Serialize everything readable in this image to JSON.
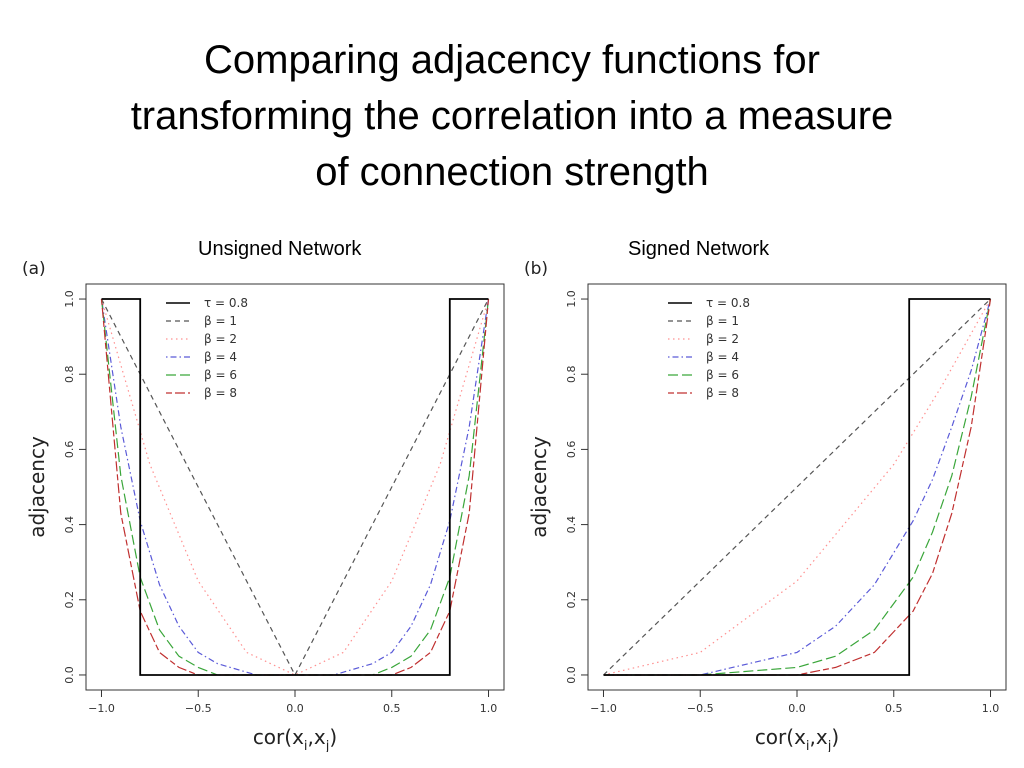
{
  "slide": {
    "title_lines": [
      "Comparing adjacency functions for",
      "transforming the correlation into a measure",
      "of connection strength"
    ],
    "panel_titles": [
      "Unsigned Network",
      "Signed Network"
    ]
  },
  "chart_data": [
    {
      "type": "line",
      "panel_label": "(a)",
      "title": "Unsigned Network",
      "xlabel": "cor(x_i,x_j)",
      "ylabel": "adjacency",
      "xlim": [
        -1.0,
        1.0
      ],
      "ylim": [
        0.0,
        1.0
      ],
      "xticks": [
        -1.0,
        -0.5,
        0.0,
        0.5,
        1.0
      ],
      "xtick_labels": [
        "−1.0",
        "−0.5",
        "0.0",
        "0.5",
        "1.0"
      ],
      "yticks": [
        0.0,
        0.2,
        0.4,
        0.6,
        0.8,
        1.0
      ],
      "ytick_labels": [
        "0.0",
        "0.2",
        "0.4",
        "0.6",
        "0.8",
        "1.0"
      ],
      "grid": false,
      "legend_position": "top-left",
      "series": [
        {
          "name": "τ = 0.8",
          "color": "#000000",
          "dash": "solid",
          "x": [
            -1.0,
            -0.8,
            -0.8,
            0.8,
            0.8,
            1.0
          ],
          "y": [
            1,
            1,
            0,
            0,
            1,
            1
          ]
        },
        {
          "name": "β = 1",
          "color": "#555555",
          "dash": "dashed",
          "x": [
            -1.0,
            -0.5,
            0.0,
            0.5,
            1.0
          ],
          "y": [
            1.0,
            0.5,
            0.0,
            0.5,
            1.0
          ]
        },
        {
          "name": "β = 2",
          "color": "#ff9090",
          "dash": "dotted",
          "x": [
            -1.0,
            -0.75,
            -0.5,
            -0.25,
            0.0,
            0.25,
            0.5,
            0.75,
            1.0
          ],
          "y": [
            1.0,
            0.56,
            0.25,
            0.06,
            0.0,
            0.06,
            0.25,
            0.56,
            1.0
          ]
        },
        {
          "name": "β = 4",
          "color": "#5a5ad8",
          "dash": "dashdot",
          "x": [
            -1.0,
            -0.9,
            -0.8,
            -0.7,
            -0.6,
            -0.5,
            -0.4,
            -0.2,
            0.0,
            0.2,
            0.4,
            0.5,
            0.6,
            0.7,
            0.8,
            0.9,
            1.0
          ],
          "y": [
            1.0,
            0.66,
            0.41,
            0.24,
            0.13,
            0.06,
            0.03,
            0.0,
            0.0,
            0.0,
            0.03,
            0.06,
            0.13,
            0.24,
            0.41,
            0.66,
            1.0
          ]
        },
        {
          "name": "β = 6",
          "color": "#3aa63a",
          "dash": "longdash",
          "x": [
            -1.0,
            -0.9,
            -0.8,
            -0.7,
            -0.6,
            -0.5,
            -0.4,
            -0.2,
            0.0,
            0.2,
            0.4,
            0.5,
            0.6,
            0.7,
            0.8,
            0.9,
            1.0
          ],
          "y": [
            1.0,
            0.53,
            0.26,
            0.12,
            0.05,
            0.02,
            0.0,
            0.0,
            0.0,
            0.0,
            0.0,
            0.02,
            0.05,
            0.12,
            0.26,
            0.53,
            1.0
          ]
        },
        {
          "name": "β = 8",
          "color": "#c03030",
          "dash": "twodash",
          "x": [
            -1.0,
            -0.9,
            -0.8,
            -0.7,
            -0.6,
            -0.5,
            -0.4,
            -0.2,
            0.0,
            0.2,
            0.4,
            0.5,
            0.6,
            0.7,
            0.8,
            0.9,
            1.0
          ],
          "y": [
            1.0,
            0.43,
            0.17,
            0.06,
            0.02,
            0.0,
            0.0,
            0.0,
            0.0,
            0.0,
            0.0,
            0.0,
            0.02,
            0.06,
            0.17,
            0.43,
            1.0
          ]
        }
      ]
    },
    {
      "type": "line",
      "panel_label": "(b)",
      "title": "Signed Network",
      "xlabel": "cor(x_i,x_j)",
      "ylabel": "adjacency",
      "xlim": [
        -1.0,
        1.0
      ],
      "ylim": [
        0.0,
        1.0
      ],
      "xticks": [
        -1.0,
        -0.5,
        0.0,
        0.5,
        1.0
      ],
      "xtick_labels": [
        "−1.0",
        "−0.5",
        "0.0",
        "0.5",
        "1.0"
      ],
      "yticks": [
        0.0,
        0.2,
        0.4,
        0.6,
        0.8,
        1.0
      ],
      "ytick_labels": [
        "0.0",
        "0.2",
        "0.4",
        "0.6",
        "0.8",
        "1.0"
      ],
      "grid": false,
      "legend_position": "top-left",
      "series": [
        {
          "name": "τ = 0.8",
          "color": "#000000",
          "dash": "solid",
          "x": [
            -1.0,
            0.58,
            0.58,
            1.0
          ],
          "y": [
            0,
            0,
            1,
            1
          ]
        },
        {
          "name": "β = 1",
          "color": "#555555",
          "dash": "dashed",
          "x": [
            -1.0,
            0.0,
            1.0
          ],
          "y": [
            0.0,
            0.5,
            1.0
          ]
        },
        {
          "name": "β = 2",
          "color": "#ff9090",
          "dash": "dotted",
          "x": [
            -1.0,
            -0.5,
            0.0,
            0.5,
            0.75,
            1.0
          ],
          "y": [
            0.0,
            0.06,
            0.25,
            0.56,
            0.77,
            1.0
          ]
        },
        {
          "name": "β = 4",
          "color": "#5a5ad8",
          "dash": "dashdot",
          "x": [
            -1.0,
            -0.5,
            0.0,
            0.2,
            0.4,
            0.6,
            0.7,
            0.8,
            0.9,
            1.0
          ],
          "y": [
            0.0,
            0.0,
            0.06,
            0.13,
            0.24,
            0.41,
            0.52,
            0.66,
            0.81,
            1.0
          ]
        },
        {
          "name": "β = 6",
          "color": "#3aa63a",
          "dash": "longdash",
          "x": [
            -1.0,
            -0.5,
            0.0,
            0.2,
            0.4,
            0.6,
            0.7,
            0.8,
            0.9,
            1.0
          ],
          "y": [
            0.0,
            0.0,
            0.02,
            0.05,
            0.12,
            0.26,
            0.38,
            0.53,
            0.74,
            1.0
          ]
        },
        {
          "name": "β = 8",
          "color": "#c03030",
          "dash": "twodash",
          "x": [
            -1.0,
            -0.5,
            0.0,
            0.2,
            0.4,
            0.6,
            0.7,
            0.8,
            0.9,
            1.0
          ],
          "y": [
            0.0,
            0.0,
            0.0,
            0.02,
            0.06,
            0.17,
            0.27,
            0.43,
            0.66,
            1.0
          ]
        }
      ]
    }
  ]
}
